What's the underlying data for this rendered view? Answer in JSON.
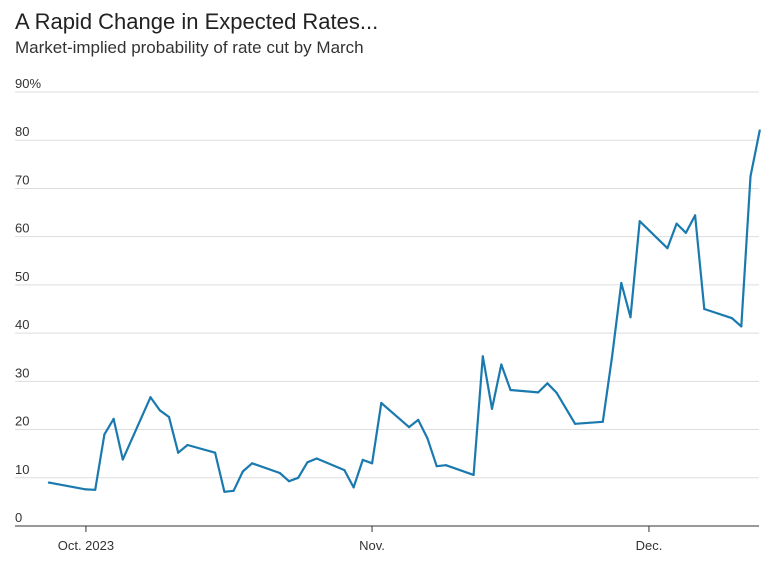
{
  "header": {
    "title": "A Rapid Change in Expected Rates...",
    "subtitle": "Market-implied probability of rate cut by March"
  },
  "colors": {
    "line": "#1a7aaf",
    "grid": "#dddddd",
    "axis": "#333333"
  },
  "chart_data": {
    "type": "line",
    "title": "A Rapid Change in Expected Rates...",
    "subtitle": "Market-implied probability of rate cut by March",
    "xlabel": "",
    "ylabel": "",
    "ylim": [
      0,
      90
    ],
    "xlim": [
      "2023-09-27",
      "2023-12-15"
    ],
    "y_ticks": [
      {
        "value": 0,
        "label": "0"
      },
      {
        "value": 10,
        "label": "10"
      },
      {
        "value": 20,
        "label": "20"
      },
      {
        "value": 30,
        "label": "30"
      },
      {
        "value": 40,
        "label": "40"
      },
      {
        "value": 50,
        "label": "50"
      },
      {
        "value": 60,
        "label": "60"
      },
      {
        "value": 70,
        "label": "70"
      },
      {
        "value": 80,
        "label": "80"
      },
      {
        "value": 90,
        "label": "90%"
      }
    ],
    "x_ticks": [
      {
        "value": "2023-10-01",
        "label": "Oct. 2023"
      },
      {
        "value": "2023-11-01",
        "label": "Nov."
      },
      {
        "value": "2023-12-01",
        "label": "Dec."
      }
    ],
    "grid": true,
    "series": [
      {
        "points": [
          [
            "2023-09-27",
            9.0
          ],
          [
            "2023-10-01",
            7.6
          ],
          [
            "2023-10-02",
            7.5
          ],
          [
            "2023-10-03",
            19.0
          ],
          [
            "2023-10-04",
            22.2
          ],
          [
            "2023-10-05",
            13.8
          ],
          [
            "2023-10-08",
            26.7
          ],
          [
            "2023-10-09",
            24.0
          ],
          [
            "2023-10-10",
            22.6
          ],
          [
            "2023-10-11",
            15.2
          ],
          [
            "2023-10-12",
            16.8
          ],
          [
            "2023-10-15",
            15.2
          ],
          [
            "2023-10-16",
            7.1
          ],
          [
            "2023-10-17",
            7.3
          ],
          [
            "2023-10-18",
            11.3
          ],
          [
            "2023-10-19",
            13.0
          ],
          [
            "2023-10-22",
            11.0
          ],
          [
            "2023-10-23",
            9.3
          ],
          [
            "2023-10-24",
            10.0
          ],
          [
            "2023-10-25",
            13.2
          ],
          [
            "2023-10-26",
            14.0
          ],
          [
            "2023-10-29",
            11.6
          ],
          [
            "2023-10-30",
            8.0
          ],
          [
            "2023-10-31",
            13.7
          ],
          [
            "2023-11-01",
            13.0
          ],
          [
            "2023-11-02",
            25.5
          ],
          [
            "2023-11-05",
            20.5
          ],
          [
            "2023-11-06",
            22.0
          ],
          [
            "2023-11-07",
            18.2
          ],
          [
            "2023-11-08",
            12.4
          ],
          [
            "2023-11-09",
            12.6
          ],
          [
            "2023-11-12",
            10.6
          ],
          [
            "2023-11-13",
            35.2
          ],
          [
            "2023-11-14",
            24.3
          ],
          [
            "2023-11-15",
            33.5
          ],
          [
            "2023-11-16",
            28.2
          ],
          [
            "2023-11-19",
            27.7
          ],
          [
            "2023-11-20",
            29.6
          ],
          [
            "2023-11-21",
            27.6
          ],
          [
            "2023-11-23",
            21.2
          ],
          [
            "2023-11-26",
            21.6
          ],
          [
            "2023-11-27",
            35.0
          ],
          [
            "2023-11-28",
            50.4
          ],
          [
            "2023-11-29",
            43.3
          ],
          [
            "2023-11-30",
            63.2
          ],
          [
            "2023-12-03",
            57.6
          ],
          [
            "2023-12-04",
            62.7
          ],
          [
            "2023-12-05",
            60.8
          ],
          [
            "2023-12-06",
            64.4
          ],
          [
            "2023-12-07",
            45.0
          ],
          [
            "2023-12-10",
            43.1
          ],
          [
            "2023-12-11",
            41.4
          ],
          [
            "2023-12-12",
            72.5
          ],
          [
            "2023-12-13",
            82.0
          ]
        ]
      }
    ]
  }
}
